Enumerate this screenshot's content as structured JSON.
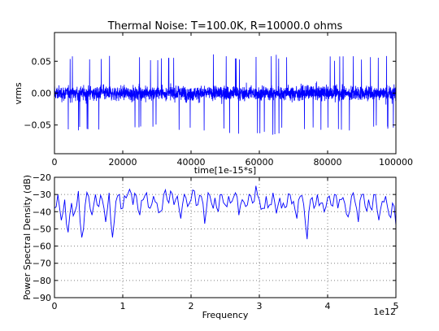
{
  "colors": {
    "line": "#0000ff",
    "frame": "#000000",
    "grid": "#808080",
    "background": "#ffffff"
  },
  "chart_data": [
    {
      "type": "line",
      "title": "Thermal Noise: T=100.0K, R=10000.0 ohms",
      "xlabel": "time[1e-15*s]",
      "ylabel": "vrms",
      "xlim": [
        0,
        100000
      ],
      "ylim": [
        -0.095,
        0.095
      ],
      "xticks": [
        0,
        20000,
        40000,
        60000,
        80000,
        100000
      ],
      "xtick_labels": [
        "0",
        "20000",
        "40000",
        "60000",
        "80000",
        "100000"
      ],
      "yticks": [
        0.05,
        0.0,
        -0.05
      ],
      "ytick_labels": [
        "0.05",
        "0.00",
        "−0.05"
      ],
      "grid": false,
      "series": [
        {
          "description_values": "dense white-noise voltage trace; ~100000 samples, bulk within about ±0.03, peaks reaching about ±0.07",
          "x": [
            0,
            10000,
            20000,
            30000,
            40000,
            50000,
            60000,
            70000,
            80000,
            90000,
            100000
          ],
          "y_max": [
            0.055,
            0.062,
            0.058,
            0.06,
            0.064,
            0.061,
            0.063,
            0.059,
            0.06,
            0.058,
            0.068
          ],
          "y_min": [
            -0.06,
            -0.058,
            -0.062,
            -0.057,
            -0.06,
            -0.063,
            -0.072,
            -0.059,
            -0.061,
            -0.06,
            -0.058
          ]
        }
      ]
    },
    {
      "type": "line",
      "title": "",
      "xlabel": "Frequency",
      "ylabel": "Power Spectral Density (dB)",
      "x_offset_label": "1e12",
      "xlim": [
        0,
        5
      ],
      "ylim": [
        -90,
        -20
      ],
      "xticks": [
        0,
        1,
        2,
        3,
        4,
        5
      ],
      "xtick_labels": [
        "0",
        "1",
        "2",
        "3",
        "4",
        "5"
      ],
      "yticks": [
        -20,
        -30,
        -40,
        -50,
        -60,
        -70,
        -80,
        -90
      ],
      "ytick_labels": [
        "−20",
        "−30",
        "−40",
        "−50",
        "−60",
        "−70",
        "−80",
        "−90"
      ],
      "grid": true,
      "series": [
        {
          "x": [
            0,
            0.05,
            0.1,
            0.15,
            0.2,
            0.25,
            0.3,
            0.35,
            0.4,
            0.45,
            0.5,
            0.55,
            0.6,
            0.65,
            0.7,
            0.75,
            0.8,
            0.85,
            0.9,
            0.95,
            1.0,
            1.05,
            1.1,
            1.15,
            1.2,
            1.25,
            1.3,
            1.35,
            1.4,
            1.45,
            1.5,
            1.55,
            1.6,
            1.65,
            1.7,
            1.75,
            1.8,
            1.85,
            1.9,
            1.95,
            2.0,
            2.05,
            2.1,
            2.15,
            2.2,
            2.25,
            2.3,
            2.35,
            2.4,
            2.45,
            2.5,
            2.55,
            2.6,
            2.65,
            2.7,
            2.75,
            2.8,
            2.85,
            2.9,
            2.95,
            3.0,
            3.05,
            3.1,
            3.15,
            3.2,
            3.25,
            3.3,
            3.35,
            3.4,
            3.45,
            3.5,
            3.55,
            3.6,
            3.65,
            3.7,
            3.75,
            3.8,
            3.85,
            3.9,
            3.95,
            4.0,
            4.05,
            4.1,
            4.15,
            4.2,
            4.25,
            4.3,
            4.35,
            4.4,
            4.45,
            4.5,
            4.55,
            4.6,
            4.65,
            4.7,
            4.75,
            4.8,
            4.85,
            4.9,
            4.95,
            5.0
          ],
          "y": [
            -38,
            -30,
            -45,
            -33,
            -52,
            -35,
            -40,
            -28,
            -55,
            -36,
            -31,
            -42,
            -30,
            -37,
            -33,
            -46,
            -29,
            -55,
            -34,
            -30,
            -38,
            -32,
            -27,
            -36,
            -31,
            -42,
            -33,
            -29,
            -38,
            -31,
            -35,
            -40,
            -30,
            -33,
            -28,
            -36,
            -31,
            -44,
            -30,
            -37,
            -33,
            -28,
            -36,
            -31,
            -47,
            -29,
            -35,
            -32,
            -40,
            -30,
            -36,
            -31,
            -34,
            -29,
            -42,
            -33,
            -37,
            -30,
            -35,
            -25,
            -33,
            -38,
            -31,
            -36,
            -29,
            -41,
            -32,
            -35,
            -37,
            -30,
            -34,
            -44,
            -31,
            -36,
            -56,
            -33,
            -38,
            -30,
            -35,
            -40,
            -32,
            -36,
            -30,
            -38,
            -33,
            -35,
            -43,
            -31,
            -34,
            -46,
            -30,
            -37,
            -33,
            -39,
            -30,
            -45,
            -34,
            -31,
            -42,
            -35,
            -48
          ]
        }
      ]
    }
  ]
}
